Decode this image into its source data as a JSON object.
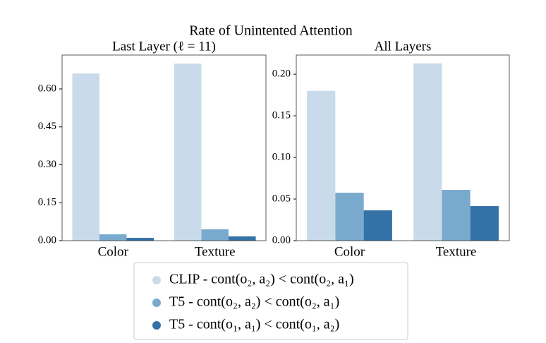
{
  "title": "Rate of Unintented Attention",
  "chart_data": [
    {
      "type": "bar",
      "title": "Last Layer (ℓ = 11)",
      "categories": [
        "Color",
        "Texture"
      ],
      "series": [
        {
          "name": "CLIP - cont(o₂, a₂) < cont(o₂, a₁)",
          "color": "#c9dbea",
          "values": [
            0.661,
            0.7
          ]
        },
        {
          "name": "T5 - cont(o₂, a₂) < cont(o₂, a₁)",
          "color": "#79aacd",
          "values": [
            0.025,
            0.045
          ]
        },
        {
          "name": "T5 - cont(o₁, a₁) < cont(o₁, a₂)",
          "color": "#3371a6",
          "values": [
            0.011,
            0.017
          ]
        }
      ],
      "ylim": [
        0,
        0.734
      ],
      "yticks": [
        {
          "value": 0,
          "label": "0.00"
        },
        {
          "value": 0.15,
          "label": "0.15"
        },
        {
          "value": 0.3,
          "label": "0.30"
        },
        {
          "value": 0.45,
          "label": "0.45"
        },
        {
          "value": 0.6,
          "label": "0.60"
        }
      ]
    },
    {
      "type": "bar",
      "title": "All Layers",
      "categories": [
        "Color",
        "Texture"
      ],
      "series": [
        {
          "color": "#c9dbea",
          "values": [
            0.18,
            0.213
          ]
        },
        {
          "color": "#79aacd",
          "values": [
            0.0576,
            0.061
          ]
        },
        {
          "color": "#3371a6",
          "values": [
            0.0364,
            0.0415
          ]
        }
      ],
      "ylim": [
        0,
        0.223
      ],
      "yticks": [
        {
          "value": 0,
          "label": "0.00"
        },
        {
          "value": 0.05,
          "label": "0.05"
        },
        {
          "value": 0.1,
          "label": "0.10"
        },
        {
          "value": 0.15,
          "label": "0.15"
        },
        {
          "value": 0.2,
          "label": "0.20"
        }
      ]
    }
  ]
}
